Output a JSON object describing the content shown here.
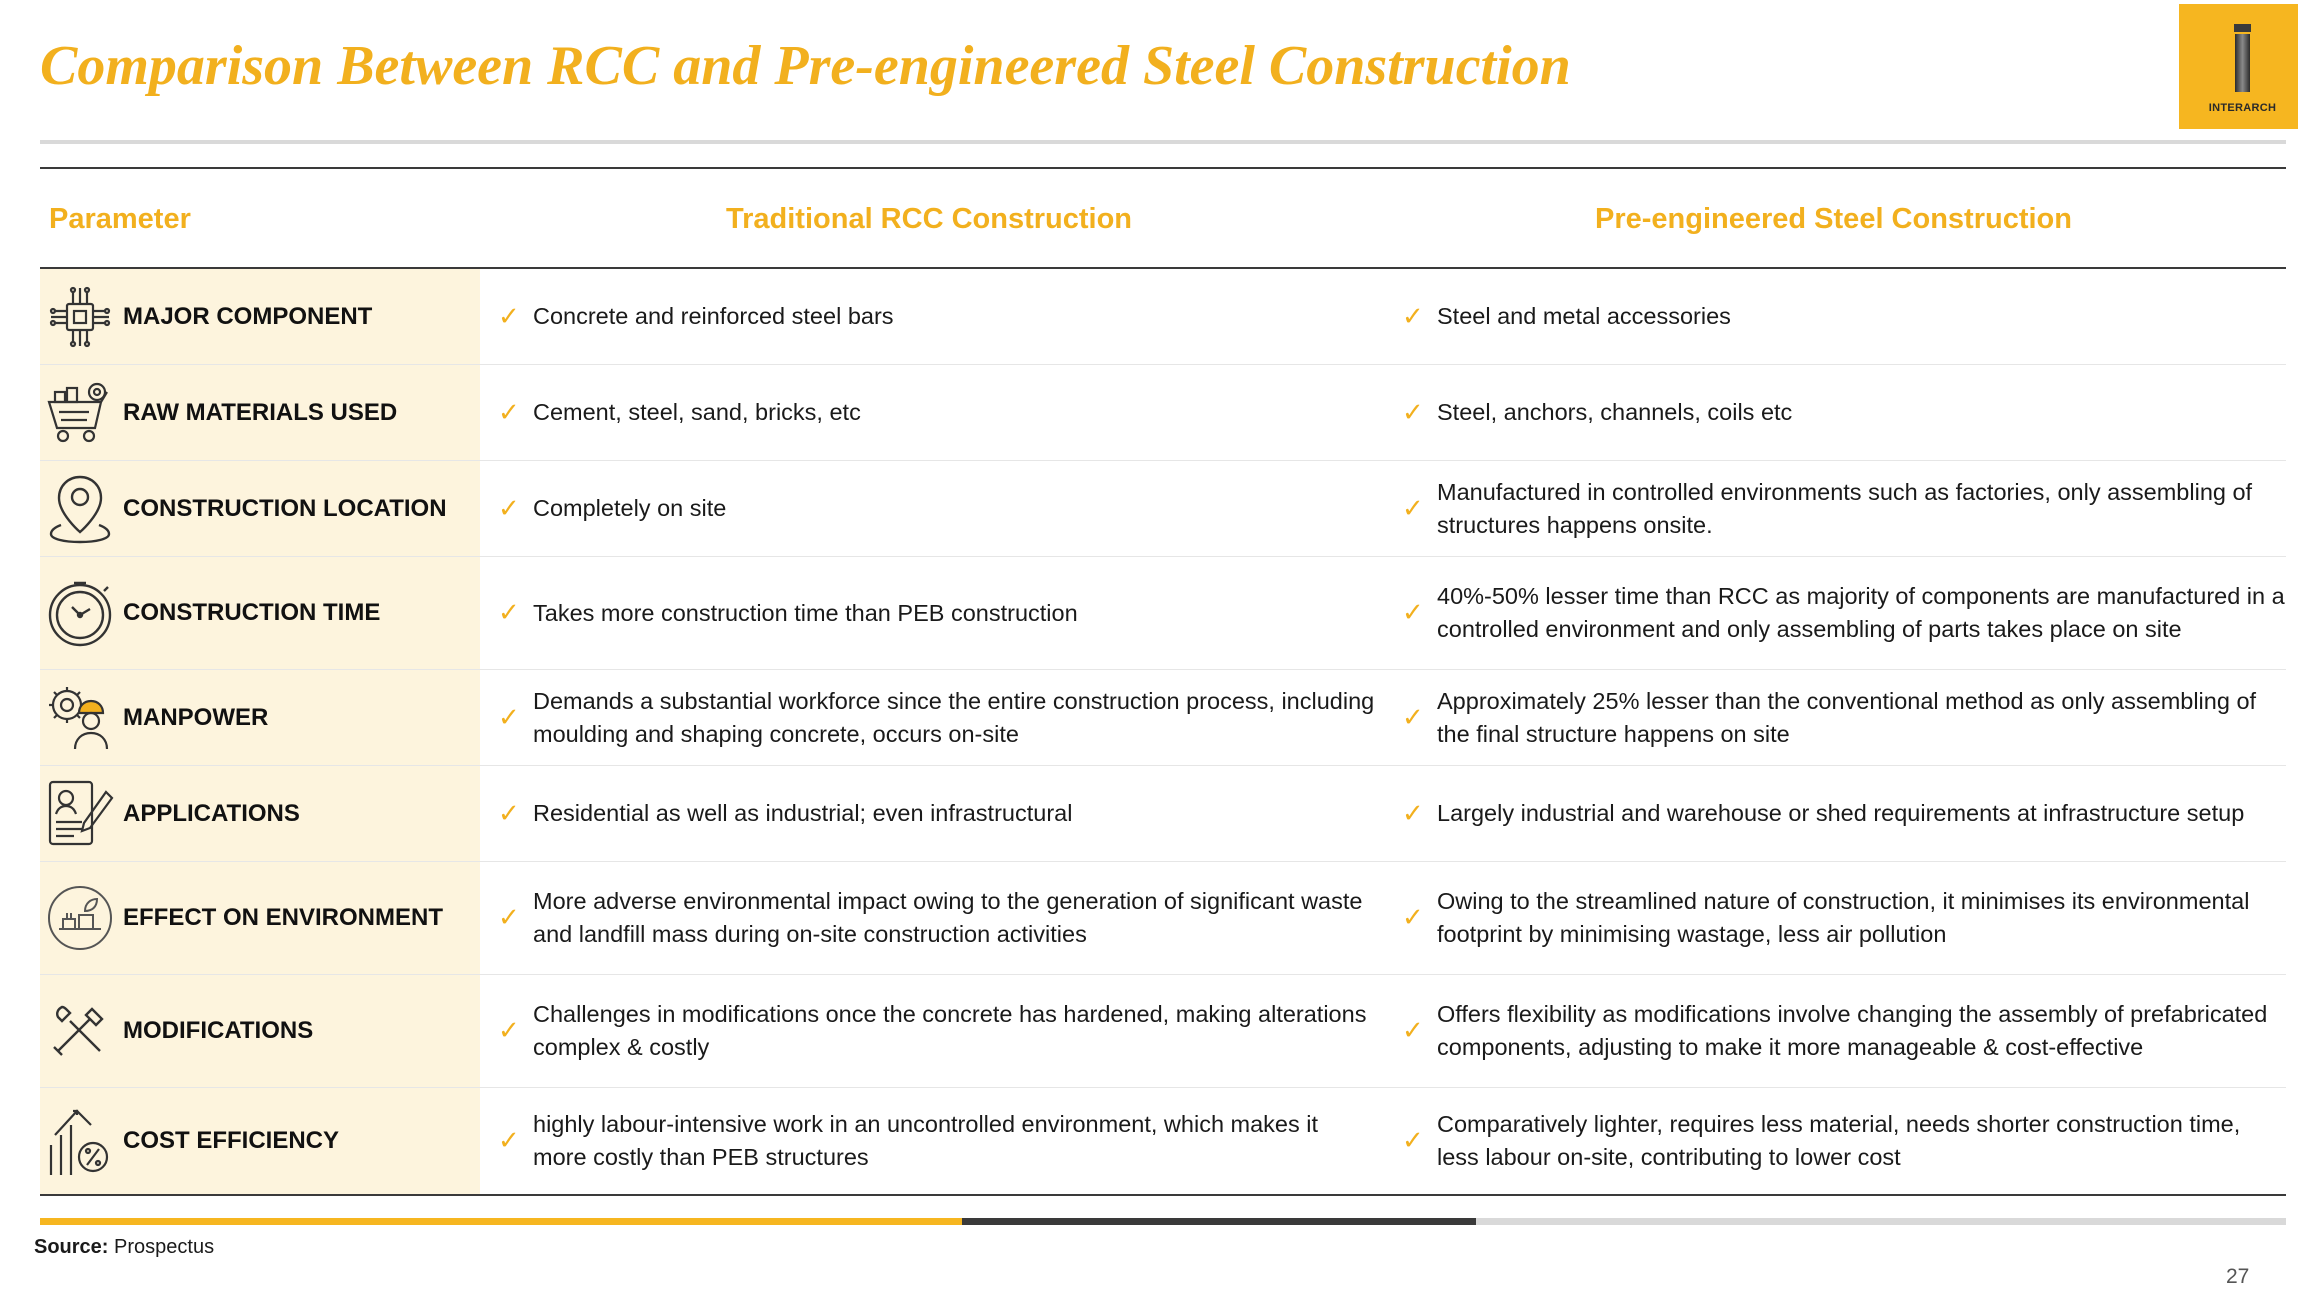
{
  "title": "Comparison Between RCC and Pre-engineered Steel Construction",
  "logo": {
    "brand": "INTERARCH",
    "icon": "interarch-logo"
  },
  "colors": {
    "accent": "#F2B01E",
    "param_bg": "#FDF4DD",
    "dark": "#3a3a3a"
  },
  "headers": {
    "parameter": "Parameter",
    "rcc": "Traditional RCC Construction",
    "peb": "Pre-engineered Steel Construction"
  },
  "check_glyph": "✓",
  "rows": [
    {
      "icon": "circuit-component-icon",
      "parameter": "MAJOR COMPONENT",
      "rcc": "Concrete and reinforced steel bars",
      "peb": "Steel and metal accessories"
    },
    {
      "icon": "material-cart-icon",
      "parameter": "RAW MATERIALS USED",
      "rcc": "Cement, steel, sand, bricks, etc",
      "peb": "Steel, anchors, channels, coils etc"
    },
    {
      "icon": "location-pin-icon",
      "parameter": "CONSTRUCTION LOCATION",
      "rcc": "Completely on site",
      "peb": "Manufactured in controlled environments such as factories, only assembling of structures happens onsite."
    },
    {
      "icon": "stopwatch-icon",
      "parameter": "CONSTRUCTION TIME",
      "rcc": "Takes more construction time than PEB construction",
      "peb": "40%-50% lesser time than RCC as majority of components are manufactured in a controlled environment and only assembling of parts takes place on site"
    },
    {
      "icon": "worker-gear-icon",
      "parameter": "MANPOWER",
      "rcc": "Demands a substantial workforce since the entire construction process, including moulding and shaping concrete, occurs on-site",
      "peb": "Approximately 25% lesser than the conventional method as only assembling of the final structure happens on site"
    },
    {
      "icon": "application-form-icon",
      "parameter": "APPLICATIONS",
      "rcc": "Residential as well as industrial; even infrastructural",
      "peb": "Largely industrial and warehouse or shed requirements at infrastructure setup"
    },
    {
      "icon": "environment-icon",
      "parameter": "EFFECT ON ENVIRONMENT",
      "rcc": "More adverse environmental impact owing to the generation of significant waste and landfill mass during on-site construction activities",
      "peb": "Owing to the streamlined nature of construction, it minimises its environmental footprint by minimising wastage, less air pollution"
    },
    {
      "icon": "tools-icon",
      "parameter": "MODIFICATIONS",
      "rcc": "Challenges in modifications once the concrete has hardened, making alterations complex & costly",
      "peb": "Offers flexibility as modifications involve changing the assembly of prefabricated components, adjusting to make it more manageable & cost-effective"
    },
    {
      "icon": "cost-growth-icon",
      "parameter": "COST EFFICIENCY",
      "rcc": "highly labour-intensive work in an uncontrolled environment, which makes it more costly than PEB structures",
      "peb": "Comparatively lighter, requires less material, needs shorter construction time, less labour on-site, contributing to lower cost"
    }
  ],
  "source": {
    "label": "Source:",
    "value": "Prospectus"
  },
  "page_number": "27"
}
